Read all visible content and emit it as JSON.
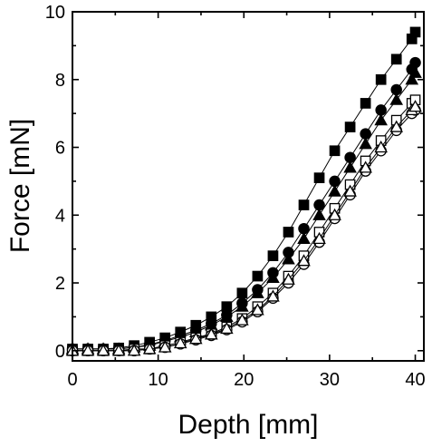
{
  "chart_data": {
    "type": "line",
    "title": "",
    "xlabel": "Depth [mm]",
    "ylabel": "Force [mN]",
    "xlim": [
      0,
      41
    ],
    "ylim": [
      -0.3,
      10
    ],
    "xticks": [
      "0",
      "10",
      "20",
      "30",
      "40"
    ],
    "yticks": [
      "0",
      "2",
      "4",
      "6",
      "8",
      "10"
    ],
    "grid": false,
    "legend": "none",
    "x": [
      0,
      1.8,
      3.6,
      5.4,
      7.2,
      9.0,
      10.8,
      12.6,
      14.4,
      16.2,
      18.0,
      19.8,
      21.6,
      23.4,
      25.2,
      27.0,
      28.8,
      30.6,
      32.4,
      34.2,
      36.0,
      37.8,
      39.6,
      40.0
    ],
    "series": [
      {
        "marker": "filled-square",
        "color": "#000000",
        "values": [
          0.05,
          0.05,
          0.05,
          0.08,
          0.15,
          0.25,
          0.38,
          0.55,
          0.75,
          1.0,
          1.3,
          1.7,
          2.2,
          2.8,
          3.5,
          4.3,
          5.1,
          5.9,
          6.6,
          7.3,
          8.0,
          8.6,
          9.2,
          9.4
        ]
      },
      {
        "marker": "filled-circle",
        "color": "#000000",
        "values": [
          0.05,
          0.05,
          0.05,
          0.05,
          0.1,
          0.18,
          0.3,
          0.45,
          0.6,
          0.8,
          1.05,
          1.4,
          1.8,
          2.3,
          2.9,
          3.6,
          4.3,
          5.0,
          5.7,
          6.4,
          7.1,
          7.7,
          8.3,
          8.5
        ]
      },
      {
        "marker": "filled-triangle",
        "color": "#000000",
        "values": [
          0.05,
          0.05,
          0.05,
          0.05,
          0.1,
          0.15,
          0.28,
          0.4,
          0.55,
          0.75,
          1.0,
          1.3,
          1.7,
          2.15,
          2.7,
          3.3,
          4.0,
          4.7,
          5.4,
          6.1,
          6.8,
          7.4,
          8.0,
          8.2
        ]
      },
      {
        "marker": "open-square",
        "color": "#000000",
        "values": [
          0.0,
          0.0,
          0.0,
          0.0,
          0.05,
          0.05,
          0.15,
          0.25,
          0.38,
          0.5,
          0.7,
          0.95,
          1.3,
          1.7,
          2.2,
          2.8,
          3.5,
          4.2,
          4.9,
          5.6,
          6.2,
          6.8,
          7.3,
          7.4
        ]
      },
      {
        "marker": "open-circle",
        "color": "#000000",
        "values": [
          0.0,
          0.0,
          0.0,
          0.0,
          0.0,
          0.05,
          0.1,
          0.2,
          0.32,
          0.45,
          0.62,
          0.85,
          1.15,
          1.55,
          2.0,
          2.55,
          3.2,
          3.9,
          4.6,
          5.3,
          5.9,
          6.5,
          7.0,
          7.1
        ]
      },
      {
        "marker": "open-triangle",
        "color": "#000000",
        "values": [
          0.0,
          0.0,
          0.0,
          0.0,
          0.0,
          0.05,
          0.1,
          0.22,
          0.35,
          0.48,
          0.65,
          0.9,
          1.2,
          1.6,
          2.1,
          2.65,
          3.3,
          4.0,
          4.7,
          5.4,
          6.0,
          6.6,
          7.1,
          7.2
        ]
      }
    ]
  }
}
